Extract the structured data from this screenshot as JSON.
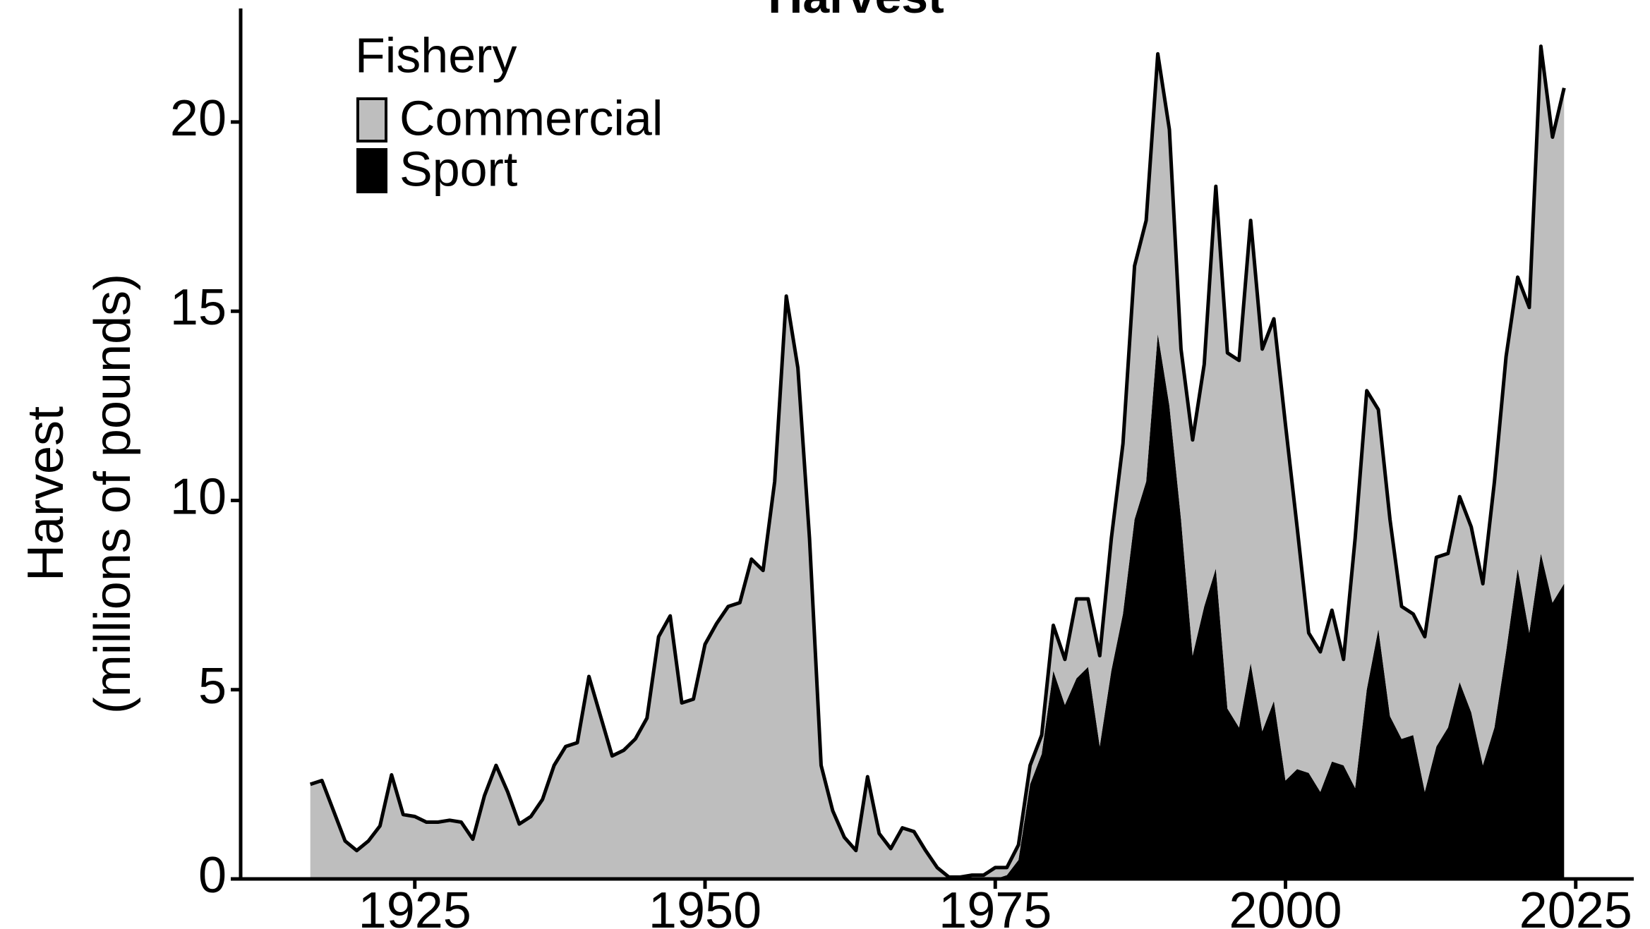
{
  "chart_data": {
    "type": "stacked_area",
    "title": "Harvest",
    "y_label": [
      "Harvest",
      "(millions of pounds)"
    ],
    "legend_title": "Fishery",
    "x": [
      1916,
      1917,
      1918,
      1919,
      1920,
      1921,
      1922,
      1923,
      1924,
      1925,
      1926,
      1927,
      1928,
      1929,
      1930,
      1931,
      1932,
      1933,
      1934,
      1935,
      1936,
      1937,
      1938,
      1939,
      1940,
      1941,
      1942,
      1943,
      1944,
      1945,
      1946,
      1947,
      1948,
      1949,
      1950,
      1951,
      1952,
      1953,
      1954,
      1955,
      1956,
      1957,
      1958,
      1959,
      1960,
      1961,
      1962,
      1963,
      1964,
      1965,
      1966,
      1967,
      1968,
      1969,
      1970,
      1971,
      1972,
      1973,
      1974,
      1975,
      1976,
      1977,
      1978,
      1979,
      1980,
      1981,
      1982,
      1983,
      1984,
      1985,
      1986,
      1987,
      1988,
      1989,
      1990,
      1991,
      1992,
      1993,
      1994,
      1995,
      1996,
      1997,
      1998,
      1999,
      2000,
      2001,
      2002,
      2003,
      2004,
      2005,
      2006,
      2007,
      2008,
      2009,
      2010,
      2011,
      2012,
      2013,
      2014,
      2015,
      2016,
      2017,
      2018,
      2019,
      2020,
      2021,
      2022,
      2023,
      2024
    ],
    "series": [
      {
        "name": "Sport",
        "color": "#000000",
        "values": [
          0,
          0,
          0,
          0,
          0,
          0,
          0,
          0,
          0,
          0,
          0,
          0,
          0,
          0,
          0,
          0,
          0,
          0,
          0,
          0,
          0,
          0,
          0,
          0,
          0,
          0,
          0,
          0,
          0,
          0,
          0,
          0,
          0,
          0,
          0,
          0,
          0,
          0,
          0,
          0,
          0,
          0,
          0,
          0,
          0,
          0,
          0,
          0,
          0,
          0,
          0,
          0,
          0,
          0,
          0,
          0,
          0,
          0,
          0,
          0,
          0.1,
          0.5,
          2.5,
          3.3,
          5.5,
          4.6,
          5.3,
          5.6,
          3.5,
          5.5,
          7.0,
          9.5,
          10.5,
          14.4,
          12.5,
          9.5,
          5.9,
          7.2,
          8.2,
          4.5,
          4.0,
          5.7,
          3.9,
          4.7,
          2.6,
          2.9,
          2.8,
          2.3,
          3.1,
          3.0,
          2.4,
          5.0,
          6.6,
          4.3,
          3.7,
          3.8,
          2.3,
          3.5,
          4.0,
          5.2,
          4.4,
          3.0,
          4.0,
          6.0,
          8.2,
          6.5,
          8.6,
          7.3,
          7.8
        ]
      },
      {
        "name": "Commercial",
        "color": "#bebebe",
        "values": [
          2.5,
          2.6,
          1.8,
          1.0,
          0.75,
          1.0,
          1.4,
          2.75,
          1.7,
          1.65,
          1.5,
          1.5,
          1.55,
          1.5,
          1.05,
          2.2,
          3.0,
          2.3,
          1.45,
          1.65,
          2.1,
          3.0,
          3.5,
          3.6,
          5.35,
          4.3,
          3.25,
          3.4,
          3.7,
          4.25,
          6.4,
          6.95,
          4.65,
          4.75,
          6.2,
          6.75,
          7.2,
          7.3,
          8.45,
          8.15,
          10.5,
          15.4,
          13.5,
          9.0,
          3.0,
          1.8,
          1.1,
          0.75,
          2.7,
          1.2,
          0.8,
          1.35,
          1.25,
          0.75,
          0.3,
          0.05,
          0.05,
          0.1,
          0.1,
          0.3,
          0.2,
          0.4,
          0.5,
          0.5,
          1.2,
          1.2,
          2.1,
          1.8,
          2.4,
          3.5,
          4.5,
          6.7,
          6.9,
          7.4,
          7.3,
          4.5,
          5.7,
          6.4,
          10.1,
          9.4,
          9.7,
          11.7,
          10.1,
          10.1,
          9.4,
          6.4,
          3.7,
          3.7,
          4.0,
          2.8,
          6.6,
          7.9,
          5.8,
          5.2,
          3.5,
          3.2,
          4.1,
          5.0,
          4.6,
          4.9,
          4.9,
          4.8,
          6.5,
          7.8,
          7.7,
          8.6,
          13.4,
          12.3,
          13.1
        ]
      }
    ],
    "legend_order": [
      1,
      0
    ],
    "xlim": [
      1910,
      2030
    ],
    "xticks": [
      1925,
      1950,
      1975,
      2000,
      2025
    ],
    "ylim": [
      0,
      23
    ],
    "yticks": [
      0,
      5,
      10,
      15,
      20
    ],
    "grid": false
  }
}
